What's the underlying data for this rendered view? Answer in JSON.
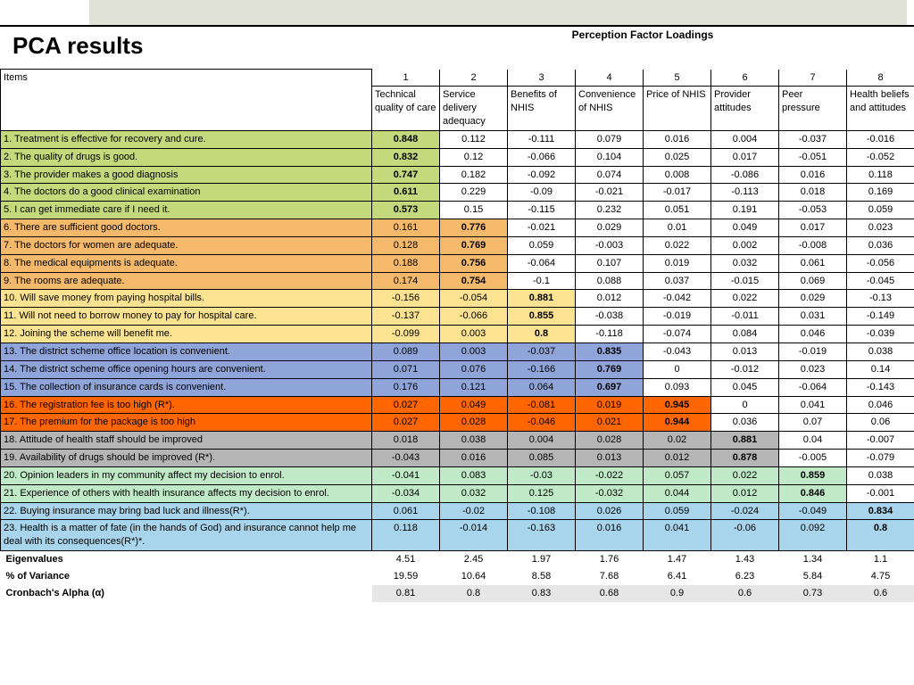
{
  "title": "PCA results",
  "superhead": "Perception Factor Loadings",
  "col_numbers": [
    "1",
    "2",
    "3",
    "4",
    "5",
    "6",
    "7",
    "8"
  ],
  "factor_names": [
    "Technical quality of care",
    "Service delivery adequacy",
    "Benefits of NHIS",
    "Convenience of NHIS",
    "Price of NHIS",
    "Provider attitudes",
    "Peer pressure",
    "Health beliefs and attitudes"
  ],
  "items_label": "Items",
  "colors": {
    "f1": "#c4d97b",
    "f2": "#f4b96a",
    "f3": "#fbe391",
    "f4": "#8fa4d8",
    "f5": "#ff6600",
    "f6": "#b5b5b5",
    "f7": "#bfe9c7",
    "f8": "#a9d5ec",
    "footer_gray": "#e6e6e6"
  },
  "rows": [
    {
      "item": "1. Treatment is effective for recovery and cure.",
      "group": "f1",
      "bold": 0,
      "v": [
        "0.848",
        "0.112",
        "-0.111",
        "0.079",
        "0.016",
        "0.004",
        "-0.037",
        "-0.016"
      ]
    },
    {
      "item": "2. The quality of drugs is good.",
      "group": "f1",
      "bold": 0,
      "v": [
        "0.832",
        "0.12",
        "-0.066",
        "0.104",
        "0.025",
        "0.017",
        "-0.051",
        "-0.052"
      ]
    },
    {
      "item": "3. The provider makes a good diagnosis",
      "group": "f1",
      "bold": 0,
      "v": [
        "0.747",
        "0.182",
        "-0.092",
        "0.074",
        "0.008",
        "-0.086",
        "0.016",
        "0.118"
      ]
    },
    {
      "item": "4. The doctors do a good clinical examination",
      "group": "f1",
      "bold": 0,
      "v": [
        "0.611",
        "0.229",
        "-0.09",
        "-0.021",
        "-0.017",
        "-0.113",
        "0.018",
        "0.169"
      ]
    },
    {
      "item": "5. I can get immediate care if I need it.",
      "group": "f1",
      "bold": 0,
      "v": [
        "0.573",
        "0.15",
        "-0.115",
        "0.232",
        "0.051",
        "0.191",
        "-0.053",
        "0.059"
      ]
    },
    {
      "item": "6. There are sufficient good doctors.",
      "group": "f2",
      "bold": 1,
      "v": [
        "0.161",
        "0.776",
        "-0.021",
        "0.029",
        "0.01",
        "0.049",
        "0.017",
        "0.023"
      ]
    },
    {
      "item": "7. The doctors for women are adequate.",
      "group": "f2",
      "bold": 1,
      "v": [
        "0.128",
        "0.769",
        "0.059",
        "-0.003",
        "0.022",
        "0.002",
        "-0.008",
        "0.036"
      ]
    },
    {
      "item": "8. The medical equipments is adequate.",
      "group": "f2",
      "bold": 1,
      "v": [
        "0.188",
        "0.756",
        "-0.064",
        "0.107",
        "0.019",
        "0.032",
        "0.061",
        "-0.056"
      ]
    },
    {
      "item": "9. The rooms are adequate.",
      "group": "f2",
      "bold": 1,
      "v": [
        "0.174",
        "0.754",
        "-0.1",
        "0.088",
        "0.037",
        "-0.015",
        "0.069",
        "-0.045"
      ]
    },
    {
      "item": "10. Will save money from paying hospital bills.",
      "group": "f3",
      "bold": 2,
      "v": [
        "-0.156",
        "-0.054",
        "0.881",
        "0.012",
        "-0.042",
        "0.022",
        "0.029",
        "-0.13"
      ]
    },
    {
      "item": "11. Will not need to borrow money to pay for hospital care.",
      "group": "f3",
      "bold": 2,
      "v": [
        "-0.137",
        "-0.066",
        "0.855",
        "-0.038",
        "-0.019",
        "-0.011",
        "0.031",
        "-0.149"
      ]
    },
    {
      "item": "12. Joining the scheme will benefit me.",
      "group": "f3",
      "bold": 2,
      "v": [
        "-0.099",
        "0.003",
        "0.8",
        "-0.118",
        "-0.074",
        "0.084",
        "0.046",
        "-0.039"
      ]
    },
    {
      "item": "13. The district scheme office location is convenient.",
      "group": "f4",
      "bold": 3,
      "v": [
        "0.089",
        "0.003",
        "-0.037",
        "0.835",
        "-0.043",
        "0.013",
        "-0.019",
        "0.038"
      ]
    },
    {
      "item": "14. The district scheme office opening hours are convenient.",
      "group": "f4",
      "bold": 3,
      "v": [
        "0.071",
        "0.076",
        "-0.166",
        "0.769",
        "0",
        "-0.012",
        "0.023",
        "0.14"
      ]
    },
    {
      "item": "15. The collection of insurance cards is convenient.",
      "group": "f4",
      "bold": 3,
      "v": [
        "0.176",
        "0.121",
        "0.064",
        "0.697",
        "0.093",
        "0.045",
        "-0.064",
        "-0.143"
      ]
    },
    {
      "item": "16. The registration fee is too high (R*).",
      "group": "f5",
      "bold": 4,
      "v": [
        "0.027",
        "0.049",
        "-0.081",
        "0.019",
        "0.945",
        "0",
        "0.041",
        "0.046"
      ]
    },
    {
      "item": "17. The premium for the package is too high",
      "group": "f5",
      "bold": 4,
      "v": [
        "0.027",
        "0.028",
        "-0.046",
        "0.021",
        "0.944",
        "0.036",
        "0.07",
        "0.06"
      ]
    },
    {
      "item": "18. Attitude of health staff should be improved",
      "group": "f6",
      "bold": 5,
      "v": [
        "0.018",
        "0.038",
        "0.004",
        "0.028",
        "0.02",
        "0.881",
        "0.04",
        "-0.007"
      ]
    },
    {
      "item": "19. Availability of drugs should be improved (R*).",
      "group": "f6",
      "bold": 5,
      "v": [
        "-0.043",
        "0.016",
        "0.085",
        "0.013",
        "0.012",
        "0.878",
        "-0.005",
        "-0.079"
      ]
    },
    {
      "item": "20. Opinion leaders in my community affect my decision to enrol.",
      "group": "f7",
      "bold": 6,
      "v": [
        "-0.041",
        "0.083",
        "-0.03",
        "-0.022",
        "0.057",
        "0.022",
        "0.859",
        "0.038"
      ]
    },
    {
      "item": "21. Experience of others with health insurance affects my decision to enrol.",
      "group": "f7",
      "bold": 6,
      "v": [
        "-0.034",
        "0.032",
        "0.125",
        "-0.032",
        "0.044",
        "0.012",
        "0.846",
        "-0.001"
      ]
    },
    {
      "item": "22. Buying insurance may bring bad luck and illness(R*).",
      "group": "f8",
      "bold": 7,
      "v": [
        "0.061",
        "-0.02",
        "-0.108",
        "0.026",
        "0.059",
        "-0.024",
        "-0.049",
        "0.834"
      ]
    },
    {
      "item": "23. Health is a matter of fate (in the hands of God) and insurance cannot help me deal with its consequences(R*)*.",
      "group": "f8",
      "bold": 7,
      "v": [
        "0.118",
        "-0.014",
        "-0.163",
        "0.016",
        "0.041",
        "-0.06",
        "0.092",
        "0.8"
      ]
    }
  ],
  "footers": [
    {
      "label": "Eigenvalues",
      "v": [
        "4.51",
        "2.45",
        "1.97",
        "1.76",
        "1.47",
        "1.43",
        "1.34",
        "1.1"
      ],
      "shade": false
    },
    {
      "label": "% of Variance",
      "v": [
        "19.59",
        "10.64",
        "8.58",
        "7.68",
        "6.41",
        "6.23",
        "5.84",
        "4.75"
      ],
      "shade": false
    },
    {
      "label": "Cronbach's Alpha (α)",
      "v": [
        "0.81",
        "0.8",
        "0.83",
        "0.68",
        "0.9",
        "0.6",
        "0.73",
        "0.6"
      ],
      "shade": true
    }
  ]
}
